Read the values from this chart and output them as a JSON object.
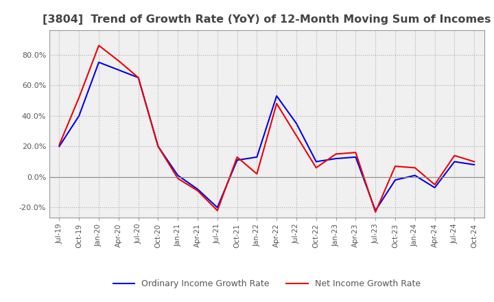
{
  "title": "[3804]  Trend of Growth Rate (YoY) of 12-Month Moving Sum of Incomes",
  "title_fontsize": 11.5,
  "title_color": "#444444",
  "line_blue_color": "#0000EE",
  "line_red_color": "#EE0000",
  "legend_blue": "Ordinary Income Growth Rate",
  "legend_red": "Net Income Growth Rate",
  "background_color": "#FFFFFF",
  "plot_bg_color": "#F0F0F0",
  "grid_color": "#AAAAAA",
  "ylim": [
    -0.265,
    0.96
  ],
  "yticks": [
    -0.2,
    0.0,
    0.2,
    0.4,
    0.6,
    0.8
  ],
  "x_labels": [
    "Jul-19",
    "Oct-19",
    "Jan-20",
    "Apr-20",
    "Jul-20",
    "Oct-20",
    "Jan-21",
    "Apr-21",
    "Jul-21",
    "Oct-21",
    "Jan-22",
    "Apr-22",
    "Jul-22",
    "Oct-22",
    "Jan-23",
    "Apr-23",
    "Jul-23",
    "Oct-23",
    "Jan-24",
    "Apr-24",
    "Jul-24",
    "Oct-24"
  ],
  "ordinary_income": [
    0.2,
    0.4,
    0.75,
    0.7,
    0.65,
    0.2,
    0.01,
    -0.08,
    -0.2,
    0.11,
    0.13,
    0.53,
    0.35,
    0.1,
    0.12,
    0.13,
    -0.22,
    -0.02,
    0.01,
    -0.07,
    0.1,
    0.08
  ],
  "net_income": [
    0.21,
    0.52,
    0.86,
    0.76,
    0.65,
    0.2,
    -0.01,
    -0.09,
    -0.22,
    0.13,
    0.02,
    0.48,
    0.27,
    0.06,
    0.15,
    0.16,
    -0.23,
    0.07,
    0.06,
    -0.05,
    0.14,
    0.1
  ]
}
